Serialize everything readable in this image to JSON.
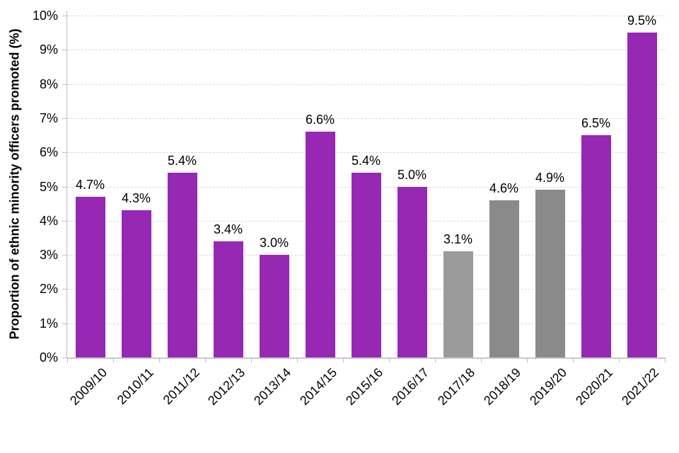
{
  "chart_data": {
    "type": "bar",
    "title": "",
    "xlabel": "",
    "ylabel": "Proportion of ethnic minority officers promoted (%)",
    "ylim": [
      0,
      10
    ],
    "ytick_step": 1,
    "yticks": [
      "0%",
      "1%",
      "2%",
      "3%",
      "4%",
      "5%",
      "6%",
      "7%",
      "8%",
      "9%",
      "10%"
    ],
    "grid": "horizontal-dashed",
    "legend_position": "none",
    "categories": [
      "2009/10",
      "2010/11",
      "2011/12",
      "2012/13",
      "2013/14",
      "2014/15",
      "2015/16",
      "2016/17",
      "2017/18",
      "2018/19",
      "2019/20",
      "2020/21",
      "2021/22"
    ],
    "values": [
      4.7,
      4.3,
      5.4,
      3.4,
      3.0,
      6.6,
      5.4,
      5.0,
      3.1,
      4.6,
      4.9,
      6.5,
      9.5
    ],
    "bar_labels": [
      "4.7%",
      "4.3%",
      "5.4%",
      "3.4%",
      "3.0%",
      "6.6%",
      "5.4%",
      "5.0%",
      "3.1%",
      "4.6%",
      "4.9%",
      "6.5%",
      "9.5%"
    ],
    "bar_color_default": "#9628b4",
    "bar_colors_by_index": {
      "8": "#9b9b9b",
      "9": "#8a8a8a",
      "10": "#8a8a8a"
    },
    "colors": {
      "purple": "#9628b4",
      "gray_light": "#9b9b9b",
      "gray_dark": "#8a8a8a",
      "gridline": "#d9d9d9",
      "axis": "#bfbfbf",
      "baseline": "#c9c9c9",
      "text": "#000000",
      "background": "#ffffff"
    }
  }
}
